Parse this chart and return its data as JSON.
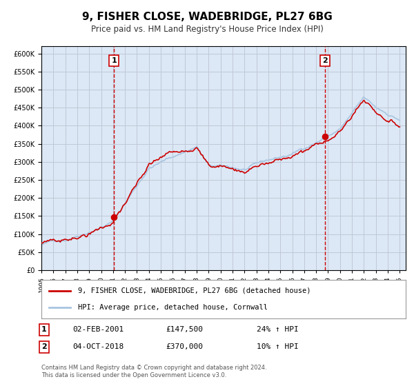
{
  "title": "9, FISHER CLOSE, WADEBRIDGE, PL27 6BG",
  "subtitle": "Price paid vs. HM Land Registry's House Price Index (HPI)",
  "legend_line1": "9, FISHER CLOSE, WADEBRIDGE, PL27 6BG (detached house)",
  "legend_line2": "HPI: Average price, detached house, Cornwall",
  "sale1_label": "1",
  "sale1_date": "02-FEB-2001",
  "sale1_price": "£147,500",
  "sale1_hpi": "24% ↑ HPI",
  "sale1_year": 2001.08,
  "sale1_value": 147500,
  "sale2_label": "2",
  "sale2_date": "04-OCT-2018",
  "sale2_price": "£370,000",
  "sale2_hpi": "10% ↑ HPI",
  "sale2_year": 2018.75,
  "sale2_value": 370000,
  "hpi_color": "#a8c4e0",
  "price_color": "#cc0000",
  "vline_color": "#cc0000",
  "grid_color": "#c0c8d8",
  "background_color": "#dce8f5",
  "plot_bg_color": "#dce8f5",
  "footer": "Contains HM Land Registry data © Crown copyright and database right 2024.\nThis data is licensed under the Open Government Licence v3.0.",
  "ylim": [
    0,
    600000
  ],
  "xlim_start": 1995.0,
  "xlim_end": 2025.5
}
